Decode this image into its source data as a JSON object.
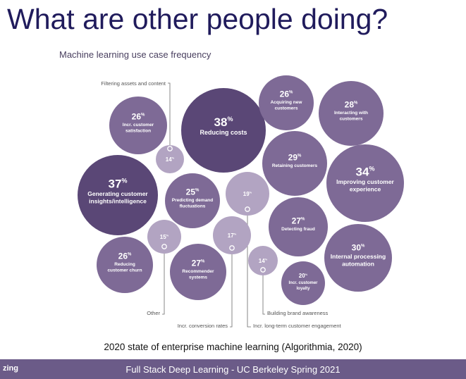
{
  "slide": {
    "title": "What are other people doing?",
    "caption": "2020 state of enterprise machine learning (Algorithmia, 2020)",
    "footer_left": "zing",
    "footer_center": "Full Stack Deep Learning - UC Berkeley Spring 2021"
  },
  "colors": {
    "dark": "#5a4776",
    "medium": "#7e6a96",
    "light": "#b2a4c2",
    "footer": "#6b5b88",
    "title": "#201b5c",
    "chart_title": "#4a4060"
  },
  "chart_data": {
    "type": "bubble",
    "title": "Machine learning use case frequency",
    "unit": "%",
    "series": [
      {
        "label": "Reducing costs",
        "value": 38
      },
      {
        "label": "Generating customer insights/intelligence",
        "value": 37
      },
      {
        "label": "Improving customer experience",
        "value": 34
      },
      {
        "label": "Internal processing automation",
        "value": 30
      },
      {
        "label": "Retaining customers",
        "value": 29
      },
      {
        "label": "Interacting with customers",
        "value": 28
      },
      {
        "label": "Detecting fraud",
        "value": 27
      },
      {
        "label": "Recommender systems",
        "value": 27
      },
      {
        "label": "Incr. customer satisfaction",
        "value": 26
      },
      {
        "label": "Acquiring new customers",
        "value": 26
      },
      {
        "label": "Reducing customer churn",
        "value": 26
      },
      {
        "label": "Predicting demand fluctuations",
        "value": 25
      },
      {
        "label": "Incr. customer loyalty",
        "value": 20
      },
      {
        "label": "Incr. long-term customer engagement",
        "value": 19
      },
      {
        "label": "Incr. conversion rates",
        "value": 17
      },
      {
        "label": "Other",
        "value": 15
      },
      {
        "label": "Filtering assets and content",
        "value": 14
      },
      {
        "label": "Building brand awareness",
        "value": 14
      }
    ]
  }
}
